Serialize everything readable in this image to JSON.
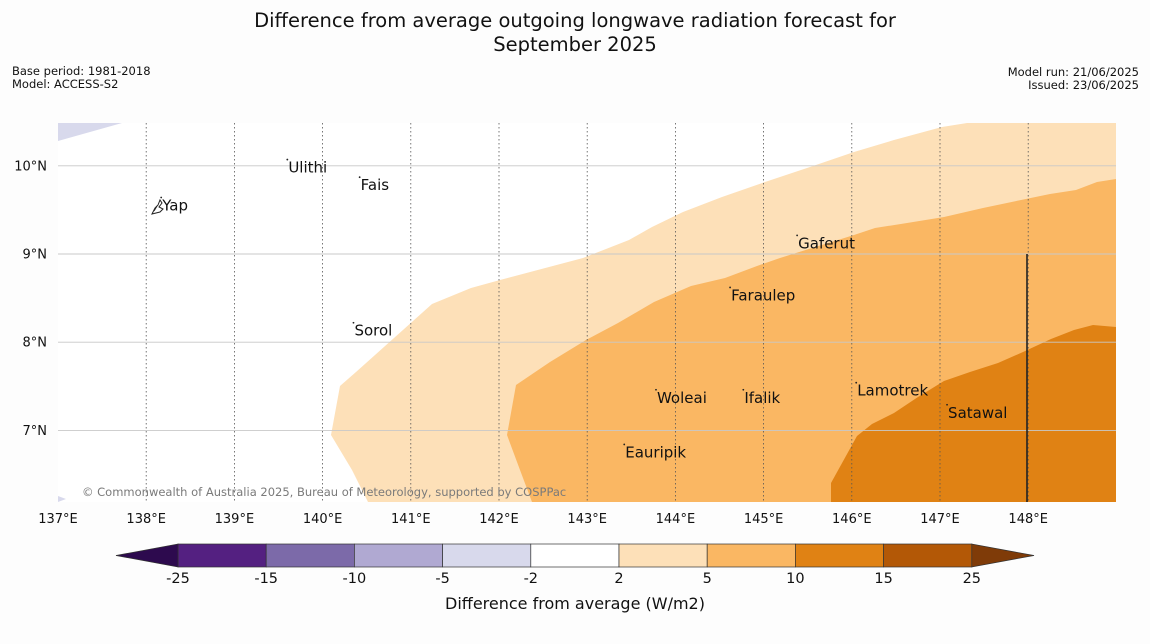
{
  "title": {
    "line1": "Difference from average outgoing longwave radiation forecast for",
    "line2": "September 2025"
  },
  "meta": {
    "base_period": "Base period: 1981-2018",
    "model": "Model: ACCESS-S2",
    "model_run": "Model run: 21/06/2025",
    "issued": "Issued: 23/06/2025"
  },
  "copyright": "© Commonwealth of Australia 2025, Bureau of Meteorology, supported by COSPPac",
  "map": {
    "lon_range": [
      137,
      149
    ],
    "lat_range": [
      6.2,
      10.5
    ],
    "lon_ticks": [
      {
        "value": 137,
        "label": "137°E"
      },
      {
        "value": 138,
        "label": "138°E"
      },
      {
        "value": 139,
        "label": "139°E"
      },
      {
        "value": 140,
        "label": "140°E"
      },
      {
        "value": 141,
        "label": "141°E"
      },
      {
        "value": 142,
        "label": "142°E"
      },
      {
        "value": 143,
        "label": "143°E"
      },
      {
        "value": 144,
        "label": "144°E"
      },
      {
        "value": 145,
        "label": "145°E"
      },
      {
        "value": 146,
        "label": "146°E"
      },
      {
        "value": 147,
        "label": "147°E"
      },
      {
        "value": 148,
        "label": "148°E"
      }
    ],
    "lat_ticks": [
      {
        "value": 10,
        "label": "10°N"
      },
      {
        "value": 9,
        "label": "9°N"
      },
      {
        "value": 8,
        "label": "8°N"
      },
      {
        "value": 7,
        "label": "7°N"
      }
    ],
    "places": [
      {
        "name": "Yap",
        "lon": 138.17,
        "lat": 9.55
      },
      {
        "name": "Ulithi",
        "lon": 139.6,
        "lat": 9.98
      },
      {
        "name": "Fais",
        "lon": 140.42,
        "lat": 9.78
      },
      {
        "name": "Sorol",
        "lon": 140.35,
        "lat": 8.13
      },
      {
        "name": "Gaferut",
        "lon": 145.38,
        "lat": 9.12
      },
      {
        "name": "Faraulep",
        "lon": 144.62,
        "lat": 8.53
      },
      {
        "name": "Woleai",
        "lon": 143.78,
        "lat": 7.37
      },
      {
        "name": "Ifalik",
        "lon": 144.77,
        "lat": 7.37
      },
      {
        "name": "Lamotrek",
        "lon": 146.05,
        "lat": 7.45
      },
      {
        "name": "Satawal",
        "lon": 147.08,
        "lat": 7.2
      },
      {
        "name": "Eauripik",
        "lon": 143.42,
        "lat": 6.75
      }
    ]
  },
  "colorbar": {
    "label": "Difference from average (W/m2)",
    "bins": [
      {
        "range": "below -25",
        "color": "#2d0a4e"
      },
      {
        "range": "-25 to -15",
        "color": "#542081"
      },
      {
        "range": "-15 to -10",
        "color": "#7c6aa9"
      },
      {
        "range": "-10 to -5",
        "color": "#b0a9d2"
      },
      {
        "range": "-5 to -2",
        "color": "#d8d9ec"
      },
      {
        "range": "-2 to 2",
        "color": "#ffffff"
      },
      {
        "range": "2 to 5",
        "color": "#fde0b8"
      },
      {
        "range": "5 to 10",
        "color": "#fab763"
      },
      {
        "range": "10 to 15",
        "color": "#e08214"
      },
      {
        "range": "15 to 25",
        "color": "#b35806"
      },
      {
        "range": "above 25",
        "color": "#7f3b08"
      }
    ],
    "tick_labels": [
      "-25",
      "-15",
      "-10",
      "-5",
      "-2",
      "2",
      "5",
      "10",
      "15",
      "25"
    ]
  }
}
